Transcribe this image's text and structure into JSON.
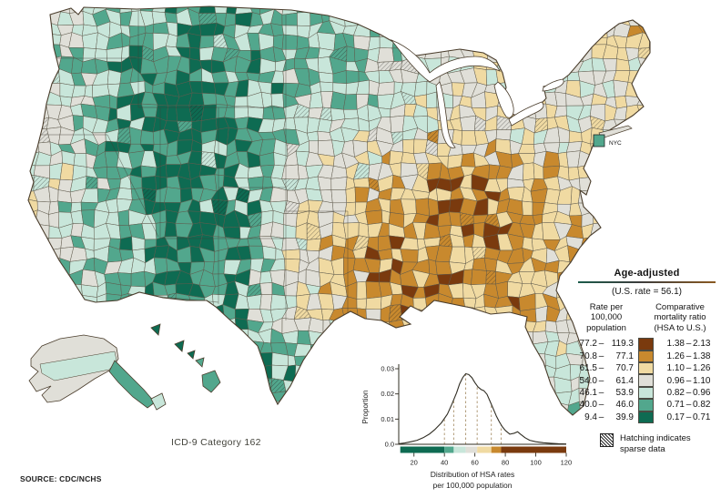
{
  "map": {
    "nyc_label": "NYC",
    "icd_label": "ICD-9 Category 162",
    "source_label": "SOURCE: CDC/NCHS"
  },
  "legend": {
    "title": "Age-adjusted",
    "us_rate_note": "(U.S. rate = 56.1)",
    "dash": "–",
    "rate_header_lines": [
      "Rate per",
      "100,000",
      "population"
    ],
    "ratio_header_lines": [
      "Comparative",
      "mortality ratio",
      "(HSA to U.S.)"
    ],
    "classes": [
      {
        "rate_lo": "77.2",
        "rate_hi": "119.3",
        "ratio_lo": "1.38",
        "ratio_hi": "2.13",
        "color": "#7a3a0e"
      },
      {
        "rate_lo": "70.8",
        "rate_hi": "77.1",
        "ratio_lo": "1.26",
        "ratio_hi": "1.38",
        "color": "#c8892e"
      },
      {
        "rate_lo": "61.5",
        "rate_hi": "70.7",
        "ratio_lo": "1.10",
        "ratio_hi": "1.26",
        "color": "#f0daa2"
      },
      {
        "rate_lo": "54.0",
        "rate_hi": "61.4",
        "ratio_lo": "0.96",
        "ratio_hi": "1.10",
        "color": "#e0dfd8"
      },
      {
        "rate_lo": "46.1",
        "rate_hi": "53.9",
        "ratio_lo": "0.82",
        "ratio_hi": "0.96",
        "color": "#c8e6da"
      },
      {
        "rate_lo": "40.0",
        "rate_hi": "46.0",
        "ratio_lo": "0.71",
        "ratio_hi": "0.82",
        "color": "#52a78d"
      },
      {
        "rate_lo": "9.4",
        "rate_hi": "39.9",
        "ratio_lo": "0.17",
        "ratio_hi": "0.71",
        "color": "#0e6b52"
      }
    ],
    "hatch_note_lines": [
      "Hatching indicates",
      "sparse data"
    ]
  },
  "chart_data": {
    "type": "area",
    "title": "Distribution of HSA rates per 100,000 population",
    "xlabel_lines": [
      "Distribution of HSA rates",
      "per 100,000 population"
    ],
    "ylabel": "Proportion",
    "xlim": [
      10,
      120
    ],
    "ylim": [
      0,
      0.03
    ],
    "x_ticks": [
      20,
      40,
      60,
      80,
      100,
      120
    ],
    "y_tick_labels": [
      "0.0",
      "0.01",
      "0.02",
      "0.03"
    ],
    "grid": false,
    "class_breaks": [
      40.0,
      46.1,
      54.0,
      61.5,
      70.8,
      77.2
    ],
    "us_rate": 56.1,
    "curve": {
      "x": [
        10,
        14,
        18,
        22,
        26,
        30,
        34,
        38,
        42,
        45,
        48,
        50,
        52,
        54,
        56,
        58,
        60,
        62,
        64,
        66,
        68,
        70,
        72,
        74,
        76,
        78,
        80,
        83,
        86,
        88,
        90,
        93,
        96,
        100,
        105,
        110,
        115,
        120
      ],
      "proportion": [
        0.0002,
        0.0005,
        0.001,
        0.0016,
        0.0026,
        0.004,
        0.006,
        0.0085,
        0.012,
        0.016,
        0.0205,
        0.024,
        0.0265,
        0.028,
        0.0277,
        0.0265,
        0.0245,
        0.0228,
        0.0218,
        0.0212,
        0.0198,
        0.017,
        0.0142,
        0.0113,
        0.009,
        0.007,
        0.0055,
        0.004,
        0.0044,
        0.005,
        0.004,
        0.0026,
        0.0016,
        0.001,
        0.0006,
        0.0004,
        0.0002,
        0.0001
      ]
    }
  }
}
